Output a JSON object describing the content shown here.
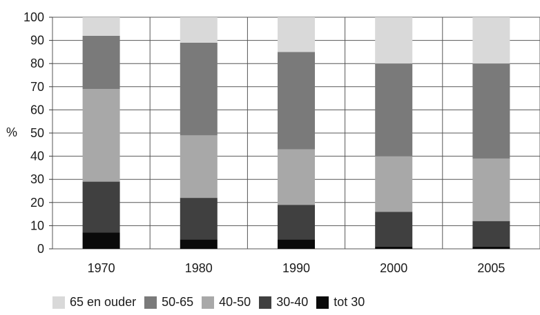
{
  "chart_data": {
    "type": "bar",
    "stacked": true,
    "categories": [
      "1970",
      "1980",
      "1990",
      "2000",
      "2005"
    ],
    "series": [
      {
        "name": "tot 30",
        "color": "#0a0a0a",
        "values": [
          7,
          4,
          4,
          1,
          1
        ]
      },
      {
        "name": "30-40",
        "color": "#404040",
        "values": [
          22,
          18,
          15,
          15,
          11
        ]
      },
      {
        "name": "40-50",
        "color": "#a8a8a8",
        "values": [
          40,
          27,
          24,
          24,
          27
        ]
      },
      {
        "name": "50-65",
        "color": "#7a7a7a",
        "values": [
          23,
          40,
          42,
          40,
          41
        ]
      },
      {
        "name": "65 en ouder",
        "color": "#d9d9d9",
        "values": [
          8,
          11,
          15,
          20,
          20
        ]
      }
    ],
    "ylabel": "%",
    "ylim": [
      0,
      100
    ],
    "yticks": [
      0,
      10,
      20,
      30,
      40,
      50,
      60,
      70,
      80,
      90,
      100
    ],
    "grid": true,
    "legend_order": [
      "65 en ouder",
      "50-65",
      "40-50",
      "30-40",
      "tot 30"
    ],
    "legend_position": "bottom"
  }
}
